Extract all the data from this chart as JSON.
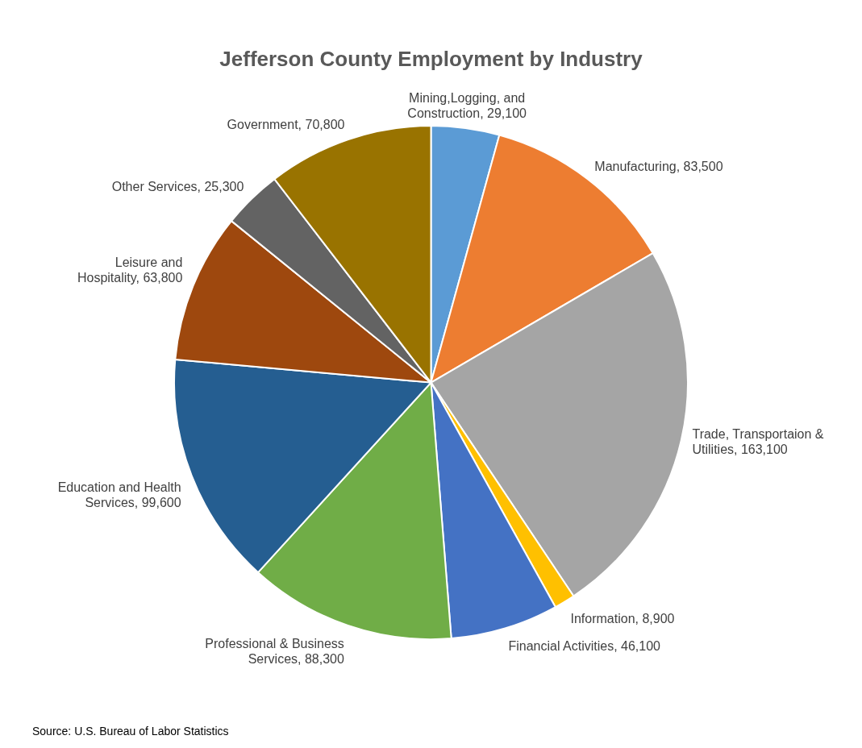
{
  "chart_data": {
    "type": "pie",
    "title": "Jefferson County Employment by Industry",
    "categories": [
      "Mining,Logging, and Construction",
      "Manufacturing",
      "Trade, Transportaion & Utilities",
      "Information",
      "Financial Activities",
      "Professional & Business Services",
      "Education and Health Services",
      "Leisure and Hospitality",
      "Other Services",
      "Government"
    ],
    "values": [
      29100,
      83500,
      163100,
      8900,
      46100,
      88300,
      99600,
      63800,
      25300,
      70800
    ],
    "value_labels": [
      "29,100",
      "83,500",
      "163,100",
      "8,900",
      "46,100",
      "88,300",
      "99,600",
      "63,800",
      "25,300",
      "70,800"
    ],
    "colors": [
      "#5b9bd5",
      "#ed7d31",
      "#a5a5a5",
      "#ffc000",
      "#4472c4",
      "#70ad47",
      "#255e91",
      "#9e480e",
      "#636363",
      "#997300"
    ],
    "annotations": [
      "Source: U.S. Bureau of Labor Statistics"
    ],
    "legend": false
  }
}
